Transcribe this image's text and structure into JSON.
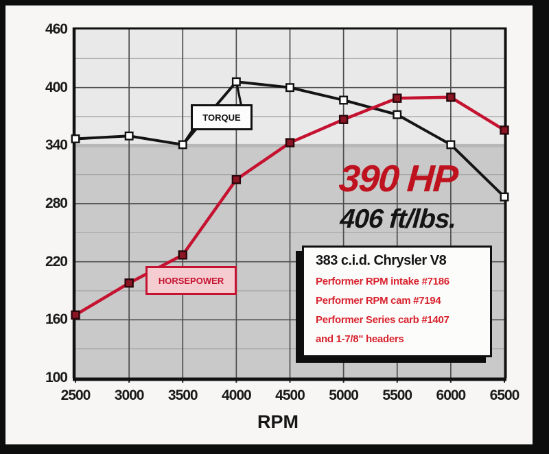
{
  "chart_data": {
    "type": "line",
    "xlabel": "RPM",
    "x": [
      2500,
      3000,
      3500,
      4000,
      4500,
      5000,
      5500,
      6000,
      6500
    ],
    "series": [
      {
        "name": "TORQUE",
        "values": [
          347,
          350,
          341,
          406,
          400,
          387,
          372,
          341,
          287
        ],
        "line_color": "#141414",
        "marker_fill": "#ffffff",
        "marker_stroke": "#111111"
      },
      {
        "name": "HORSEPOWER",
        "values": [
          165,
          198,
          227,
          305,
          343,
          367,
          389,
          390,
          356
        ],
        "line_color": "#c41230",
        "marker_fill": "#8c1524",
        "marker_stroke": "#2a070c"
      }
    ],
    "ylim": [
      100,
      460
    ],
    "yticks": [
      100,
      160,
      220,
      280,
      340,
      400,
      460
    ],
    "minor_yticks": [
      130,
      190,
      250,
      310,
      370,
      430
    ],
    "xticks": [
      2500,
      3000,
      3500,
      4000,
      4500,
      5000,
      5500,
      6000,
      6500
    ],
    "grid": true,
    "highlight_gridline": 340,
    "legend_position": "callout-boxes"
  },
  "labels": {
    "torque_tag": "TORQUE",
    "horsepower_tag": "HORSEPOWER",
    "x_axis_title": "RPM"
  },
  "annotations": {
    "hp_peak": "390 HP",
    "tq_peak": "406 ft/lbs."
  },
  "spec_box": {
    "title": "383 c.i.d. Chrysler V8",
    "lines": [
      "Performer RPM intake #7186",
      "Performer RPM cam #7194",
      "Performer Series carb #1407",
      "and 1-7/8\" headers"
    ]
  },
  "colors": {
    "frame": "#0d0d0d",
    "paper": "#f7f6f4",
    "plot_bg_upper": "#e9e9e9",
    "plot_bg_lower": "#c9c9c9",
    "grid_major": "#4d4d4d",
    "grid_minor": "#a2a2a2",
    "grid_highlight": "#b8b8b8",
    "torque_line": "#141414",
    "hp_line": "#c41230",
    "hp_peak_text": "#bf121f",
    "spec_red": "#d9232e"
  }
}
